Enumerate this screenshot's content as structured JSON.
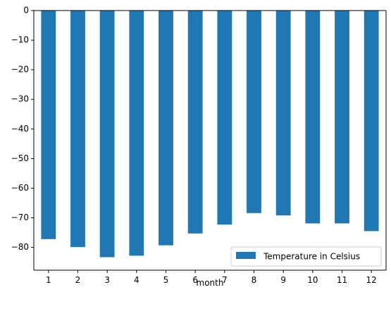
{
  "chart_data": {
    "type": "bar",
    "title": "",
    "xlabel": "month",
    "ylabel": "",
    "categories": [
      "1",
      "2",
      "3",
      "4",
      "5",
      "6",
      "7",
      "8",
      "9",
      "10",
      "11",
      "12"
    ],
    "series": [
      {
        "name": "Temperature in Celsius",
        "color": "#1f77b4",
        "values": [
          -77.2,
          -79.9,
          -83.3,
          -82.8,
          -79.3,
          -75.3,
          -72.3,
          -68.4,
          -69.2,
          -71.9,
          -71.9,
          -74.5
        ]
      }
    ],
    "ylim": [
      -87.7,
      0
    ],
    "yticks": [
      0,
      -10,
      -20,
      -30,
      -40,
      -50,
      -60,
      -70,
      -80
    ],
    "ytick_labels": [
      "0",
      "−10",
      "−20",
      "−30",
      "−40",
      "−50",
      "−60",
      "−70",
      "−80"
    ],
    "grid": false,
    "legend": "lower right"
  }
}
